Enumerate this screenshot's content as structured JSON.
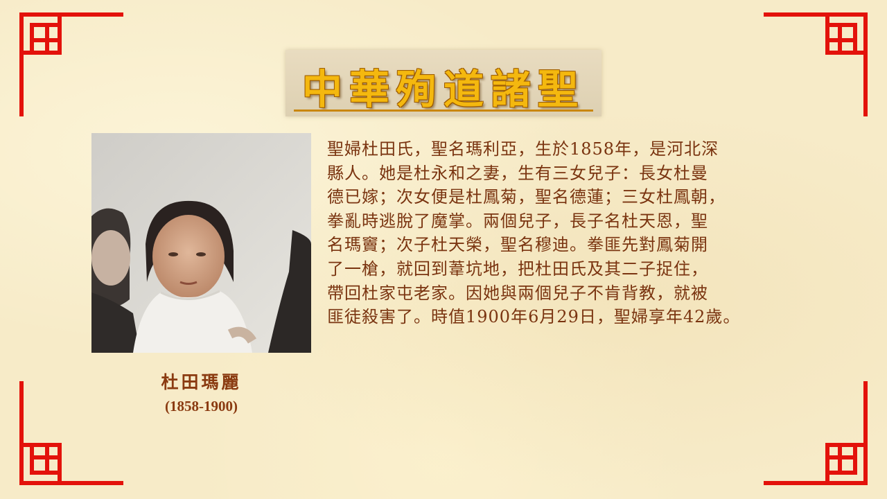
{
  "title": "中華殉道諸聖",
  "saint": {
    "name": "杜田瑪麗",
    "dates": "(1858-1900)"
  },
  "biography_lines": [
    "聖婦杜田氏，聖名瑪利亞，生於1858年，是河北深",
    "縣人。她是杜永和之妻，生有三女兒子：長女杜曼",
    "德已嫁；次女便是杜鳳菊，聖名德蓮；三女杜鳳朝，",
    "拳亂時逃脫了魔掌。兩個兒子，長子名杜天恩，聖",
    "名瑪竇；次子杜天榮，聖名穆迪。拳匪先對鳳菊開",
    "了一槍，就回到葦坑地，把杜田氏及其二子捉住，",
    "帶回杜家屯老家。因她與兩個兒子不肯背教，就被",
    "匪徒殺害了。時值1900年6月29日，聖婦享年42歲。"
  ],
  "colors": {
    "background": "#f7ebc8",
    "border_red": "#e3120b",
    "title_gold": "#f4b80f",
    "text_brown": "#7a3410"
  }
}
